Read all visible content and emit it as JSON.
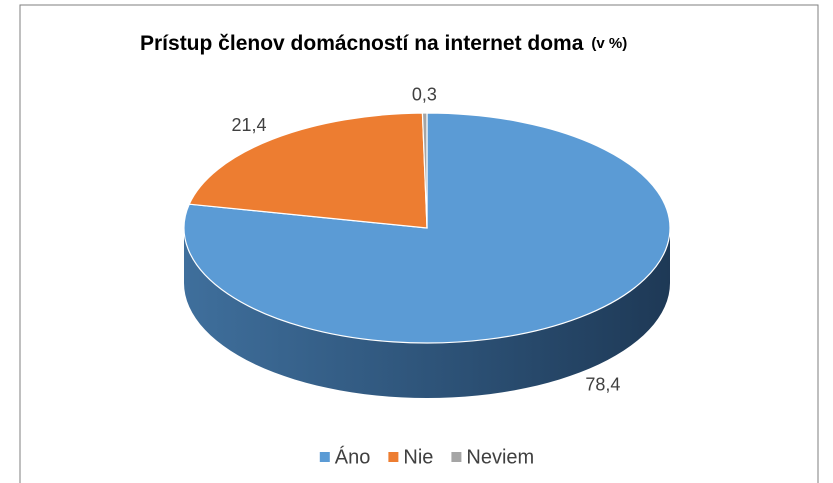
{
  "chart_data": {
    "type": "pie",
    "title": "Prístup členov domácností na internet doma",
    "title_unit": "(v %)",
    "categories": [
      "Áno",
      "Nie",
      "Neviem"
    ],
    "values": [
      78.4,
      21.4,
      0.3
    ],
    "value_labels": [
      "78,4",
      "21,4",
      "0,3"
    ],
    "colors": [
      "#5b9bd5",
      "#ed7d31",
      "#a5a5a5"
    ],
    "legend": "bottom"
  }
}
